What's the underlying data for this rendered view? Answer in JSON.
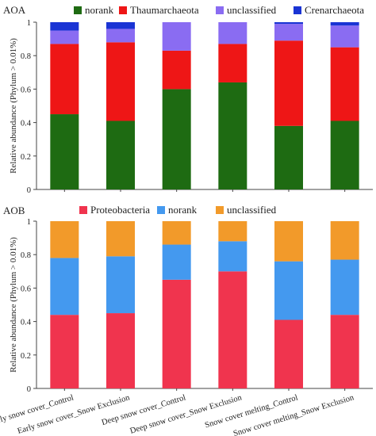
{
  "chart_data": [
    {
      "type": "bar",
      "stacked": true,
      "panel_label": "AOA",
      "ylabel": "Relative abundance (Phylum > 0.01%)",
      "ylim": [
        0,
        1
      ],
      "yticks": [
        "0",
        "0.2",
        "0.4",
        "0.6",
        "0.8",
        "1"
      ],
      "legend_position": "top",
      "categories": [
        "Early snow cover_Control",
        "Early snow cover_Snow Exclusion",
        "Deep snow cover_Control",
        "Deep snow cover_Snow Exclusion",
        "Snow cover melting_Control",
        "Snow cover melting_Snow Exclusion"
      ],
      "series": [
        {
          "name": "norank",
          "color": "#1e6b12",
          "values": [
            0.45,
            0.41,
            0.6,
            0.64,
            0.38,
            0.41
          ]
        },
        {
          "name": "Thaumarchaeota",
          "color": "#ee1616",
          "values": [
            0.42,
            0.47,
            0.23,
            0.23,
            0.51,
            0.44
          ]
        },
        {
          "name": "unclassified",
          "color": "#8a6cf2",
          "values": [
            0.08,
            0.08,
            0.17,
            0.13,
            0.1,
            0.13
          ]
        },
        {
          "name": "Crenarchaeota",
          "color": "#1a34d4",
          "values": [
            0.05,
            0.04,
            0.0,
            0.0,
            0.01,
            0.02
          ]
        }
      ]
    },
    {
      "type": "bar",
      "stacked": true,
      "panel_label": "AOB",
      "ylabel": "Relative abundance (Phylum > 0.01%)",
      "ylim": [
        0,
        1
      ],
      "yticks": [
        "0",
        "0.2",
        "0.4",
        "0.6",
        "0.8",
        "1"
      ],
      "legend_position": "top",
      "categories": [
        "Early snow cover_Control",
        "Early snow cover_Snow Exclusion",
        "Deep snow cover_Control",
        "Deep snow cover_Snow Exclusion",
        "Snow cover melting_Control",
        "Snow cover melting_Snow Exclusion"
      ],
      "series": [
        {
          "name": "Proteobacteria",
          "color": "#f0344e",
          "values": [
            0.44,
            0.45,
            0.65,
            0.7,
            0.41,
            0.44
          ]
        },
        {
          "name": "norank",
          "color": "#4499ef",
          "values": [
            0.34,
            0.34,
            0.21,
            0.18,
            0.35,
            0.33
          ]
        },
        {
          "name": "unclassified",
          "color": "#f29a2a",
          "values": [
            0.22,
            0.21,
            0.14,
            0.12,
            0.24,
            0.23
          ]
        }
      ]
    }
  ]
}
